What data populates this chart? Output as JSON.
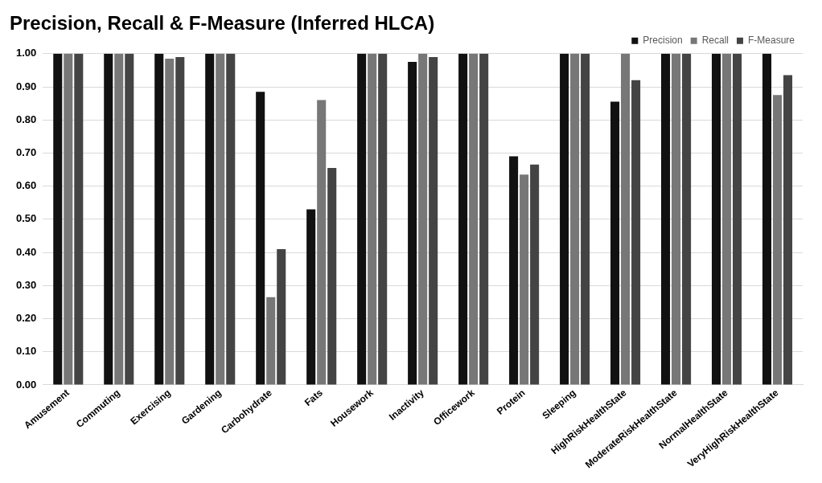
{
  "chart_data": {
    "type": "bar",
    "title": "Precision, Recall & F-Measure (Inferred HLCA)",
    "categories": [
      "Amusement",
      "Commuting",
      "Exercising",
      "Gardening",
      "Carbohydrate",
      "Fats",
      "Housework",
      "Inactivity",
      "Officework",
      "Protein",
      "Sleeping",
      "HighRiskHealthState",
      "ModerateRiskHealthState",
      "NormalHealthState",
      "VeryHighRiskHealthState"
    ],
    "series": [
      {
        "name": "Precision",
        "color": "#111111",
        "values": [
          1,
          1,
          1,
          1,
          0.885,
          0.53,
          1,
          0.975,
          1,
          0.69,
          1,
          0.855,
          1,
          1,
          1
        ]
      },
      {
        "name": "Recall",
        "color": "#777777",
        "values": [
          1,
          1,
          0.985,
          1,
          0.265,
          0.86,
          1,
          1,
          1,
          0.635,
          1,
          1,
          1,
          1,
          0.875
        ]
      },
      {
        "name": "F-Measure",
        "color": "#444444",
        "values": [
          1,
          1,
          0.99,
          1,
          0.41,
          0.655,
          1,
          0.99,
          1,
          0.665,
          1,
          0.92,
          1,
          1,
          0.935
        ]
      }
    ],
    "ylim": [
      0,
      1
    ],
    "yticks": [
      {
        "value": 0,
        "label": "0.00"
      },
      {
        "value": 0.1,
        "label": "0.10"
      },
      {
        "value": 0.2,
        "label": "0.20"
      },
      {
        "value": 0.3,
        "label": "0.30"
      },
      {
        "value": 0.4,
        "label": "0.40"
      },
      {
        "value": 0.5,
        "label": "0.50"
      },
      {
        "value": 0.6,
        "label": "0.60"
      },
      {
        "value": 0.7,
        "label": "0.70"
      },
      {
        "value": 0.8,
        "label": "0.80"
      },
      {
        "value": 0.9,
        "label": "0.90"
      },
      {
        "value": 1,
        "label": "1.00"
      }
    ],
    "grid": "y",
    "legend": "top right"
  }
}
